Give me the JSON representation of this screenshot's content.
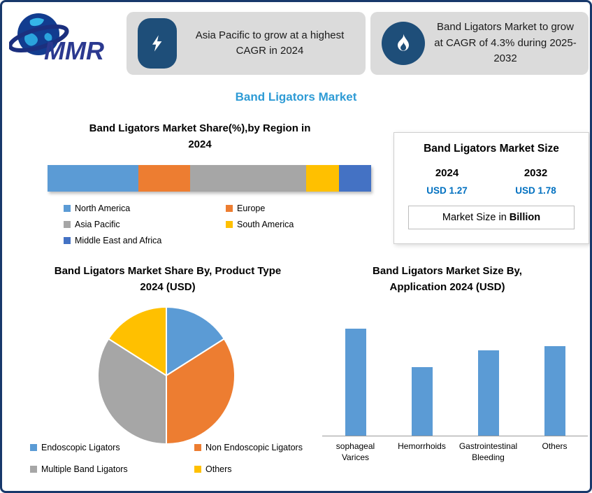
{
  "page": {
    "title": "Band Ligators Market",
    "border_color": "#17386B",
    "title_color": "#2E9BD5"
  },
  "logo": {
    "brand": "MMR"
  },
  "callouts": [
    {
      "icon": "lightning-icon",
      "text": "Asia Pacific to grow at a highest CAGR in 2024"
    },
    {
      "icon": "flame-icon",
      "text": "Band Ligators Market to grow at CAGR of 4.3% during 2025-2032"
    }
  ],
  "market_size_panel": {
    "title": "Band Ligators Market Size",
    "columns": [
      {
        "year": "2024",
        "value": "USD 1.27"
      },
      {
        "year": "2032",
        "value": "USD 1.78"
      }
    ],
    "note_prefix": "Market Size in ",
    "note_bold": "Billion",
    "value_color": "#0070C0"
  },
  "chart_data": [
    {
      "type": "bar",
      "subtype": "horizontal-stacked",
      "title": "Band Ligators Market Share(%),by Region in 2024",
      "categories": [
        "North America",
        "Europe",
        "Asia Pacific",
        "South America",
        "Middle East and Africa"
      ],
      "values": [
        28,
        16,
        36,
        10,
        10
      ],
      "unit": "%",
      "colors": [
        "#5B9BD5",
        "#ED7D31",
        "#A6A6A6",
        "#FFC000",
        "#4472C4"
      ],
      "legend_position": "bottom",
      "grid": false
    },
    {
      "type": "pie",
      "title": "Band Ligators Market Share By, Product Type  2024  (USD)",
      "categories": [
        "Endoscopic Ligators",
        "Non Endoscopic Ligators",
        "Multiple Band Ligators",
        "Others"
      ],
      "values": [
        16,
        34,
        34,
        16
      ],
      "colors": [
        "#5B9BD5",
        "#ED7D31",
        "#A6A6A6",
        "#FFC000"
      ],
      "legend_position": "bottom"
    },
    {
      "type": "bar",
      "title": "Band Ligators Market  Size By, Application 2024  (USD)",
      "categories": [
        "sophageal Varices",
        "Hemorrhoids",
        "Gastrointestinal Bleeding",
        "Others"
      ],
      "values": [
        0.5,
        0.32,
        0.4,
        0.42
      ],
      "color": "#5B9BD5",
      "ylim": [
        0,
        0.55
      ],
      "grid": false,
      "legend_position": "none"
    }
  ]
}
